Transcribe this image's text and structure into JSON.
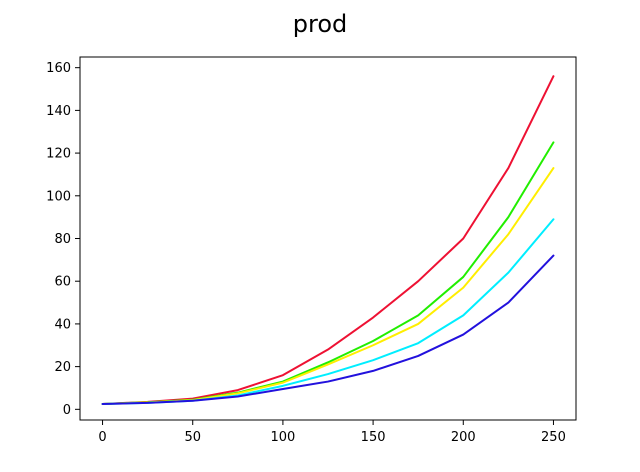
{
  "chart_data": {
    "type": "line",
    "title": "prod",
    "xlabel": "",
    "ylabel": "",
    "xlim": [
      -12.5,
      262.5
    ],
    "ylim": [
      -5,
      165
    ],
    "xticks": [
      0,
      50,
      100,
      150,
      200,
      250
    ],
    "yticks": [
      0,
      20,
      40,
      60,
      80,
      100,
      120,
      140,
      160
    ],
    "x": [
      0,
      25,
      50,
      75,
      100,
      125,
      150,
      175,
      200,
      225,
      250
    ],
    "grid": false,
    "legend": "none",
    "series": [
      {
        "color": "#ee1133",
        "values": [
          2.5,
          3.5,
          5.0,
          9.0,
          16.0,
          28.0,
          43.0,
          60.0,
          80.0,
          113.0,
          156.0
        ]
      },
      {
        "color": "#22ee00",
        "values": [
          2.5,
          3.3,
          4.5,
          7.8,
          13.0,
          22.0,
          32.0,
          44.0,
          62.0,
          90.0,
          125.0
        ]
      },
      {
        "color": "#ffee00",
        "values": [
          2.5,
          3.2,
          4.3,
          7.5,
          12.5,
          21.0,
          30.0,
          40.0,
          57.0,
          82.0,
          113.0
        ]
      },
      {
        "color": "#00eeff",
        "values": [
          2.5,
          3.0,
          4.0,
          6.5,
          11.0,
          16.5,
          23.0,
          31.0,
          44.0,
          64.0,
          89.0
        ]
      },
      {
        "color": "#2211dd",
        "values": [
          2.5,
          3.0,
          4.0,
          6.0,
          9.5,
          13.0,
          18.0,
          25.0,
          35.0,
          50.0,
          72.0
        ]
      }
    ]
  }
}
